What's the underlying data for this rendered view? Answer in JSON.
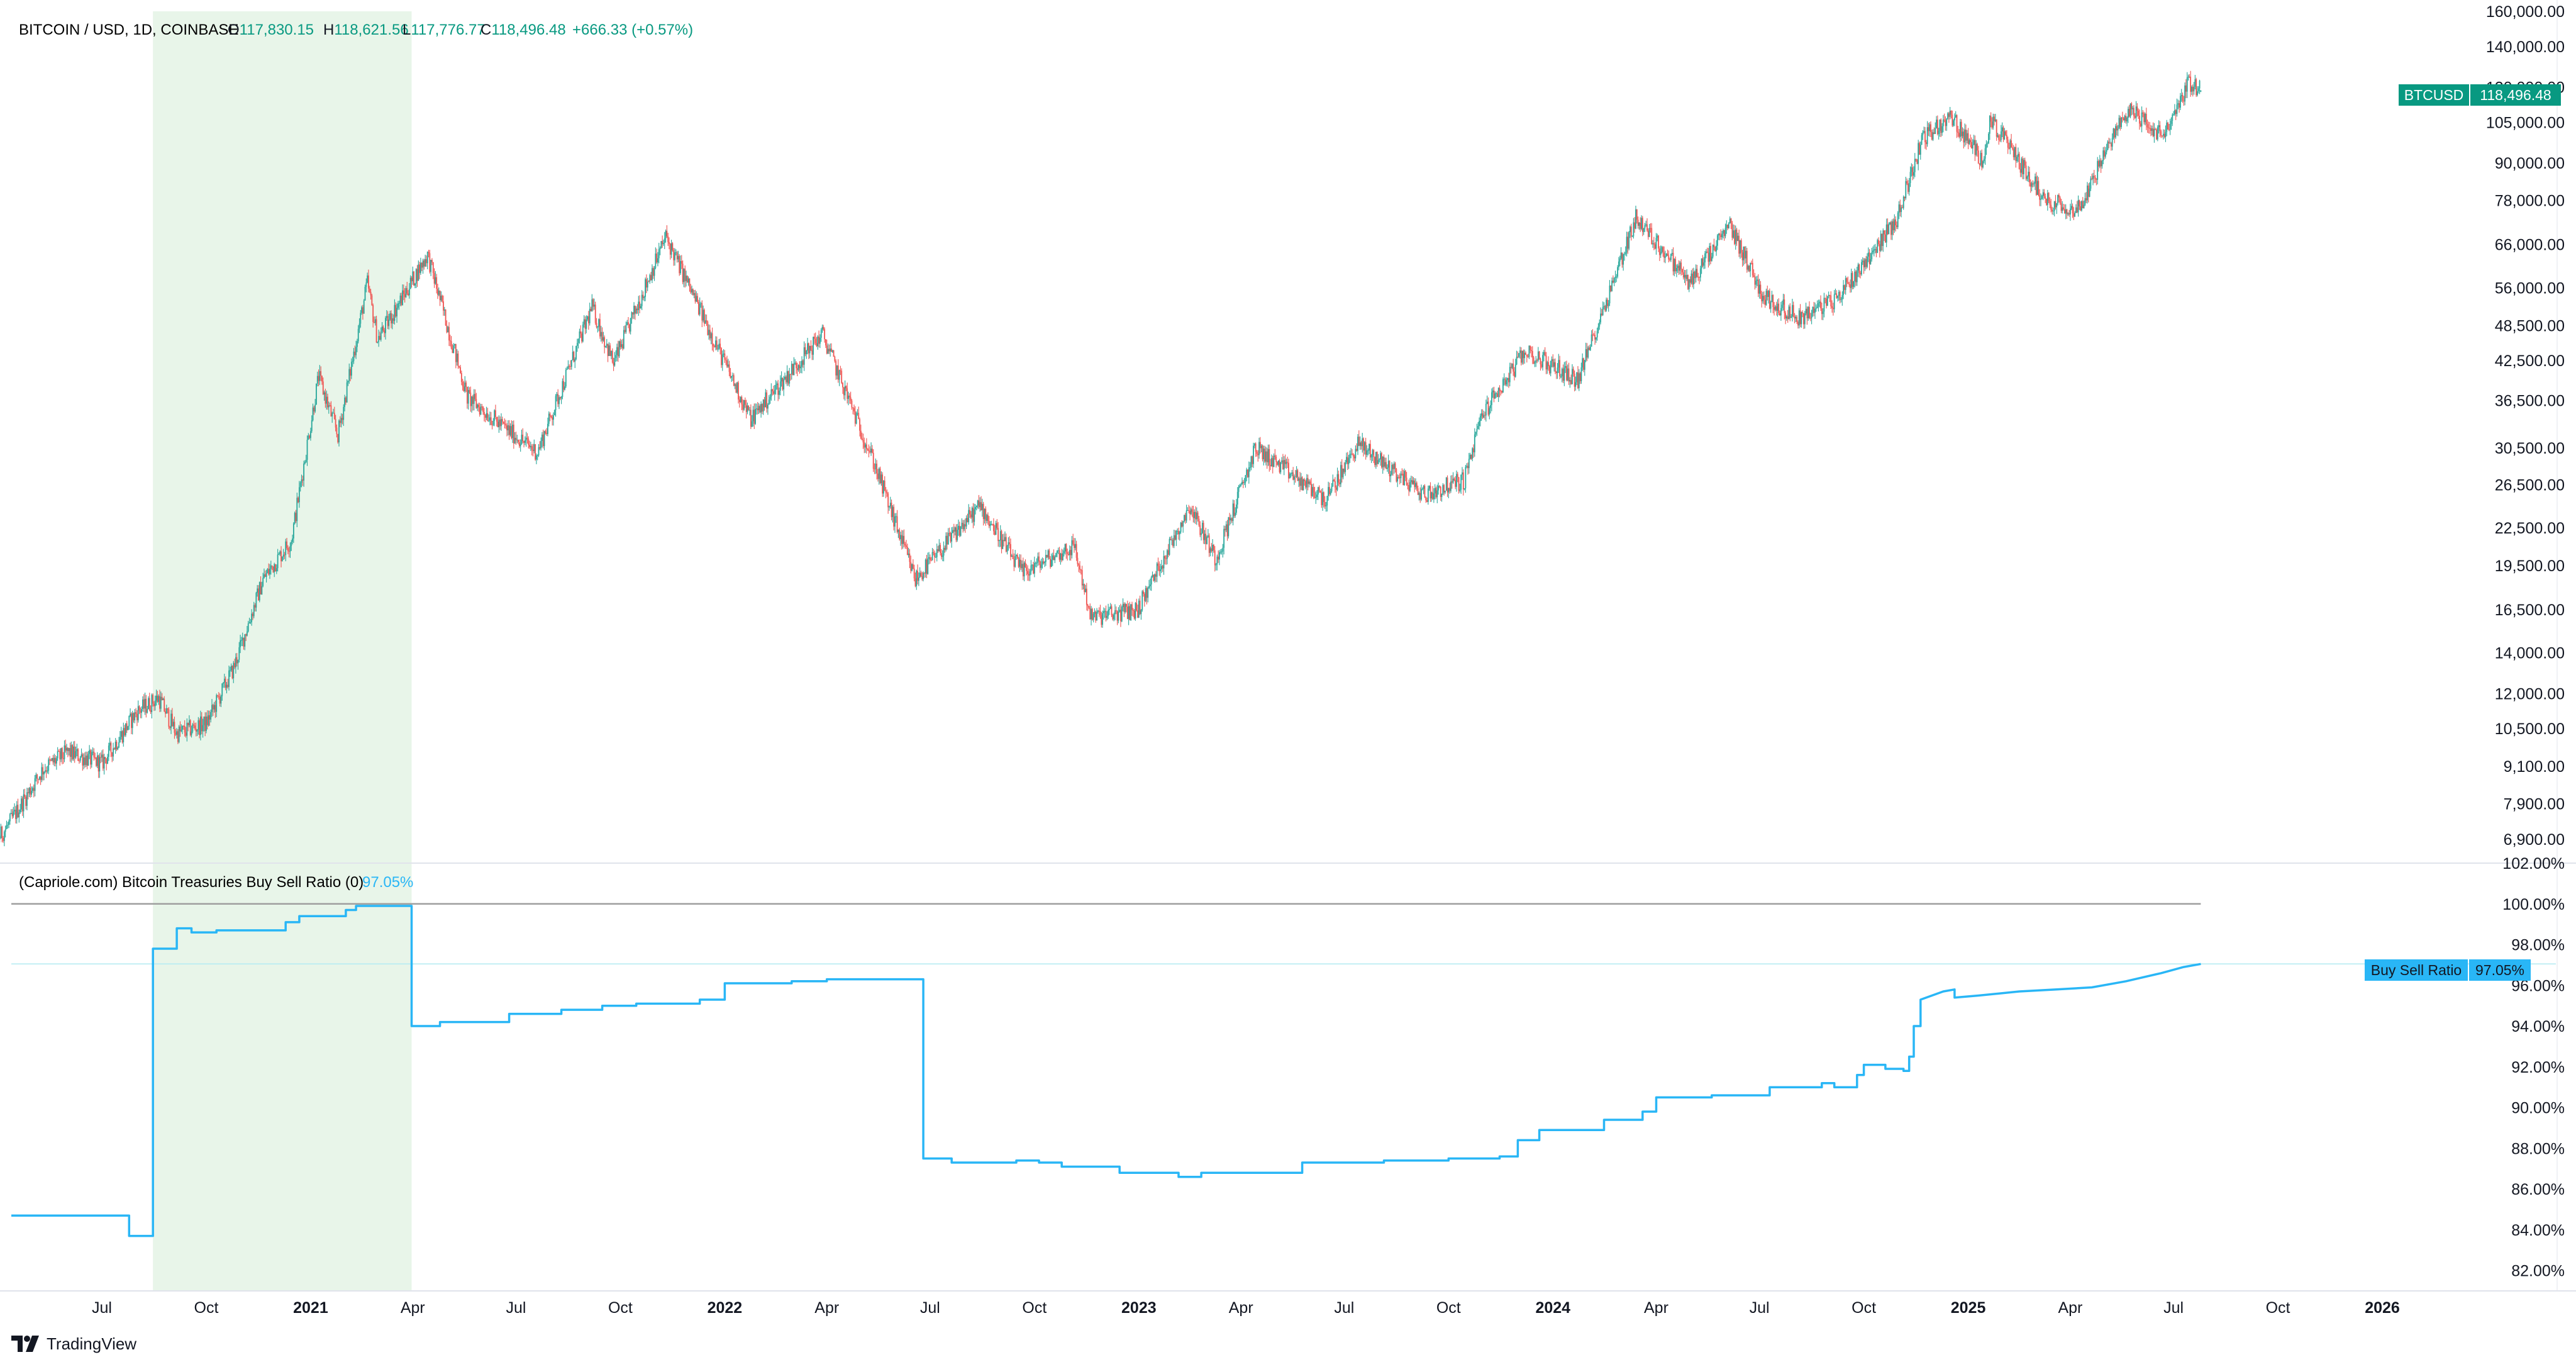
{
  "header": {
    "symbol": "BITCOIN / USD, 1D, COINBASE",
    "o_label": "O",
    "o_value": "117,830.15",
    "h_label": "H",
    "h_value": "118,621.56",
    "l_label": "L",
    "l_value": "117,776.77",
    "c_label": "C",
    "c_value": "118,496.48",
    "change": "+666.33 (+0.57%)"
  },
  "indicator": {
    "title": "(Capriole.com) Bitcoin Treasuries Buy Sell Ratio (0)",
    "value": "97.05%"
  },
  "price_tag": {
    "name": "BTCUSD",
    "value": "118,496.48"
  },
  "ratio_tag": {
    "name": "Buy Sell Ratio",
    "value": "97.05%"
  },
  "brand": "TradingView",
  "colors": {
    "up": "#26a69a",
    "down": "#ef5350",
    "ratio_line": "#29b6f6",
    "highlight": "#e8f5e9",
    "tag_price": "#089981",
    "tag_ratio": "#29b6f6",
    "grid": "#e0e3eb",
    "ref_line": "#9e9e9e"
  },
  "chart_data": [
    {
      "type": "candlestick",
      "title": "BITCOIN / USD, 1D, COINBASE",
      "y_scale": "log",
      "ylim": [
        6300,
        160000
      ],
      "y_ticks": [
        "160,000.00",
        "140,000.00",
        "120,000.00",
        "105,000.00",
        "90,000.00",
        "78,000.00",
        "66,000.00",
        "56,000.00",
        "48,500.00",
        "42,500.00",
        "36,500.00",
        "30,500.00",
        "26,500.00",
        "22,500.00",
        "19,500.00",
        "16,500.00",
        "14,000.00",
        "12,000.00",
        "10,500.00",
        "9,100.00",
        "7,900.00",
        "6,900.00"
      ],
      "x_ticks": [
        {
          "label": "Jul",
          "date": "2020-07-01",
          "year": false
        },
        {
          "label": "Oct",
          "date": "2020-10-01",
          "year": false
        },
        {
          "label": "2021",
          "date": "2021-01-01",
          "year": true
        },
        {
          "label": "Apr",
          "date": "2021-04-01",
          "year": false
        },
        {
          "label": "Jul",
          "date": "2021-07-01",
          "year": false
        },
        {
          "label": "Oct",
          "date": "2021-10-01",
          "year": false
        },
        {
          "label": "2022",
          "date": "2022-01-01",
          "year": true
        },
        {
          "label": "Apr",
          "date": "2022-04-01",
          "year": false
        },
        {
          "label": "Jul",
          "date": "2022-07-01",
          "year": false
        },
        {
          "label": "Oct",
          "date": "2022-10-01",
          "year": false
        },
        {
          "label": "2023",
          "date": "2023-01-01",
          "year": true
        },
        {
          "label": "Apr",
          "date": "2023-04-01",
          "year": false
        },
        {
          "label": "Jul",
          "date": "2023-07-01",
          "year": false
        },
        {
          "label": "Oct",
          "date": "2023-10-01",
          "year": false
        },
        {
          "label": "2024",
          "date": "2024-01-01",
          "year": true
        },
        {
          "label": "Apr",
          "date": "2024-04-01",
          "year": false
        },
        {
          "label": "Jul",
          "date": "2024-07-01",
          "year": false
        },
        {
          "label": "Oct",
          "date": "2024-10-01",
          "year": false
        },
        {
          "label": "2025",
          "date": "2025-01-01",
          "year": true
        },
        {
          "label": "Apr",
          "date": "2025-04-01",
          "year": false
        },
        {
          "label": "Jul",
          "date": "2025-07-01",
          "year": false
        },
        {
          "label": "Oct",
          "date": "2025-10-01",
          "year": false
        },
        {
          "label": "2026",
          "date": "2026-01-01",
          "year": true
        }
      ],
      "highlight_range": [
        "2020-08-15",
        "2021-03-31"
      ],
      "close_path": [
        [
          "2020-03-15",
          6300
        ],
        [
          "2020-04-10",
          7300
        ],
        [
          "2020-05-10",
          9000
        ],
        [
          "2020-06-01",
          9600
        ],
        [
          "2020-07-01",
          9200
        ],
        [
          "2020-08-01",
          11200
        ],
        [
          "2020-08-20",
          11800
        ],
        [
          "2020-09-05",
          10300
        ],
        [
          "2020-10-01",
          10700
        ],
        [
          "2020-10-25",
          13200
        ],
        [
          "2020-11-20",
          18500
        ],
        [
          "2020-12-15",
          21500
        ],
        [
          "2021-01-08",
          40000
        ],
        [
          "2021-01-25",
          32000
        ],
        [
          "2021-02-20",
          57000
        ],
        [
          "2021-03-01",
          46000
        ],
        [
          "2021-04-14",
          63500
        ],
        [
          "2021-05-19",
          37000
        ],
        [
          "2021-06-20",
          33000
        ],
        [
          "2021-07-20",
          30000
        ],
        [
          "2021-09-06",
          52000
        ],
        [
          "2021-09-25",
          42000
        ],
        [
          "2021-11-10",
          68000
        ],
        [
          "2021-12-20",
          47000
        ],
        [
          "2022-01-24",
          34000
        ],
        [
          "2022-03-28",
          47000
        ],
        [
          "2022-05-12",
          29000
        ],
        [
          "2022-06-18",
          18500
        ],
        [
          "2022-08-14",
          24500
        ],
        [
          "2022-09-20",
          19000
        ],
        [
          "2022-11-05",
          21000
        ],
        [
          "2022-11-20",
          16000
        ],
        [
          "2022-12-31",
          16500
        ],
        [
          "2023-02-15",
          24500
        ],
        [
          "2023-03-10",
          20000
        ],
        [
          "2023-04-14",
          30500
        ],
        [
          "2023-06-15",
          25000
        ],
        [
          "2023-07-13",
          31000
        ],
        [
          "2023-09-10",
          25500
        ],
        [
          "2023-10-15",
          27000
        ],
        [
          "2023-10-30",
          34500
        ],
        [
          "2023-12-08",
          44000
        ],
        [
          "2024-01-23",
          39500
        ],
        [
          "2024-03-14",
          73000
        ],
        [
          "2024-05-01",
          57000
        ],
        [
          "2024-06-05",
          71000
        ],
        [
          "2024-07-05",
          54000
        ],
        [
          "2024-08-05",
          50000
        ],
        [
          "2024-09-06",
          53500
        ],
        [
          "2024-10-29",
          72000
        ],
        [
          "2024-11-22",
          99000
        ],
        [
          "2024-12-17",
          107000
        ],
        [
          "2025-01-13",
          91000
        ],
        [
          "2025-01-21",
          106000
        ],
        [
          "2025-03-10",
          78000
        ],
        [
          "2025-04-08",
          75500
        ],
        [
          "2025-05-22",
          111000
        ],
        [
          "2025-06-22",
          99000
        ],
        [
          "2025-07-14",
          122000
        ],
        [
          "2025-07-25",
          118496.48
        ]
      ],
      "last": {
        "date": "2025-07-25",
        "open": 117830.15,
        "high": 118621.56,
        "low": 117776.77,
        "close": 118496.48
      }
    },
    {
      "type": "line",
      "title": "(Capriole.com) Bitcoin Treasuries Buy Sell Ratio (0)",
      "series": [
        {
          "name": "Buy Sell Ratio",
          "kind": "step",
          "points": [
            [
              "2020-06-01",
              0.847
            ],
            [
              "2020-07-01",
              0.847
            ],
            [
              "2020-07-25",
              0.847
            ],
            [
              "2020-07-25",
              0.837
            ],
            [
              "2020-08-15",
              0.837
            ],
            [
              "2020-08-15",
              0.978
            ],
            [
              "2020-09-05",
              0.978
            ],
            [
              "2020-09-05",
              0.988
            ],
            [
              "2020-09-18",
              0.988
            ],
            [
              "2020-09-18",
              0.986
            ],
            [
              "2020-10-10",
              0.986
            ],
            [
              "2020-10-10",
              0.987
            ],
            [
              "2020-12-10",
              0.987
            ],
            [
              "2020-12-10",
              0.991
            ],
            [
              "2020-12-22",
              0.991
            ],
            [
              "2020-12-22",
              0.994
            ],
            [
              "2021-02-01",
              0.994
            ],
            [
              "2021-02-01",
              0.997
            ],
            [
              "2021-02-10",
              0.997
            ],
            [
              "2021-02-10",
              0.999
            ],
            [
              "2021-03-31",
              0.999
            ],
            [
              "2021-03-31",
              0.94
            ],
            [
              "2021-04-25",
              0.94
            ],
            [
              "2021-04-25",
              0.942
            ],
            [
              "2021-06-25",
              0.942
            ],
            [
              "2021-06-25",
              0.946
            ],
            [
              "2021-08-10",
              0.946
            ],
            [
              "2021-08-10",
              0.948
            ],
            [
              "2021-09-15",
              0.948
            ],
            [
              "2021-09-15",
              0.95
            ],
            [
              "2021-10-15",
              0.95
            ],
            [
              "2021-10-15",
              0.951
            ],
            [
              "2021-12-10",
              0.951
            ],
            [
              "2021-12-10",
              0.953
            ],
            [
              "2022-01-01",
              0.953
            ],
            [
              "2022-01-01",
              0.961
            ],
            [
              "2022-03-01",
              0.961
            ],
            [
              "2022-03-01",
              0.962
            ],
            [
              "2022-04-01",
              0.962
            ],
            [
              "2022-04-01",
              0.963
            ],
            [
              "2022-06-25",
              0.963
            ],
            [
              "2022-06-25",
              0.875
            ],
            [
              "2022-07-20",
              0.875
            ],
            [
              "2022-07-20",
              0.873
            ],
            [
              "2022-09-15",
              0.873
            ],
            [
              "2022-09-15",
              0.874
            ],
            [
              "2022-10-05",
              0.874
            ],
            [
              "2022-10-05",
              0.873
            ],
            [
              "2022-10-25",
              0.873
            ],
            [
              "2022-10-25",
              0.871
            ],
            [
              "2022-12-15",
              0.871
            ],
            [
              "2022-12-15",
              0.868
            ],
            [
              "2023-02-05",
              0.868
            ],
            [
              "2023-02-05",
              0.866
            ],
            [
              "2023-02-25",
              0.866
            ],
            [
              "2023-02-25",
              0.868
            ],
            [
              "2023-05-25",
              0.868
            ],
            [
              "2023-05-25",
              0.873
            ],
            [
              "2023-08-05",
              0.873
            ],
            [
              "2023-08-05",
              0.874
            ],
            [
              "2023-10-01",
              0.874
            ],
            [
              "2023-10-01",
              0.875
            ],
            [
              "2023-11-15",
              0.875
            ],
            [
              "2023-11-15",
              0.876
            ],
            [
              "2023-12-01",
              0.876
            ],
            [
              "2023-12-01",
              0.884
            ],
            [
              "2023-12-20",
              0.884
            ],
            [
              "2023-12-20",
              0.889
            ],
            [
              "2024-02-15",
              0.889
            ],
            [
              "2024-02-15",
              0.894
            ],
            [
              "2024-03-20",
              0.894
            ],
            [
              "2024-03-20",
              0.898
            ],
            [
              "2024-04-01",
              0.898
            ],
            [
              "2024-04-01",
              0.905
            ],
            [
              "2024-05-20",
              0.905
            ],
            [
              "2024-05-20",
              0.906
            ],
            [
              "2024-07-10",
              0.906
            ],
            [
              "2024-07-10",
              0.91
            ],
            [
              "2024-08-25",
              0.91
            ],
            [
              "2024-08-25",
              0.912
            ],
            [
              "2024-09-05",
              0.912
            ],
            [
              "2024-09-05",
              0.91
            ],
            [
              "2024-09-25",
              0.91
            ],
            [
              "2024-09-25",
              0.916
            ],
            [
              "2024-10-01",
              0.916
            ],
            [
              "2024-10-01",
              0.921
            ],
            [
              "2024-10-20",
              0.921
            ],
            [
              "2024-10-20",
              0.919
            ],
            [
              "2024-11-05",
              0.919
            ],
            [
              "2024-11-05",
              0.918
            ],
            [
              "2024-11-10",
              0.918
            ],
            [
              "2024-11-10",
              0.925
            ],
            [
              "2024-11-14",
              0.925
            ],
            [
              "2024-11-14",
              0.94
            ],
            [
              "2024-11-20",
              0.94
            ],
            [
              "2024-11-20",
              0.953
            ],
            [
              "2024-12-10",
              0.957
            ],
            [
              "2024-12-20",
              0.958
            ],
            [
              "2024-12-20",
              0.954
            ],
            [
              "2025-01-10",
              0.955
            ],
            [
              "2025-02-15",
              0.957
            ],
            [
              "2025-03-20",
              0.958
            ],
            [
              "2025-04-20",
              0.959
            ],
            [
              "2025-05-20",
              0.962
            ],
            [
              "2025-06-20",
              0.966
            ],
            [
              "2025-07-10",
              0.969
            ],
            [
              "2025-07-25",
              0.9705
            ]
          ]
        }
      ],
      "ylim": [
        0.81,
        1.02
      ],
      "y_ticks": [
        "102.00%",
        "100.00%",
        "98.00%",
        "96.00%",
        "94.00%",
        "92.00%",
        "90.00%",
        "88.00%",
        "86.00%",
        "84.00%",
        "82.00%"
      ],
      "reference_line": 1.0,
      "last_value": 0.9705
    }
  ]
}
